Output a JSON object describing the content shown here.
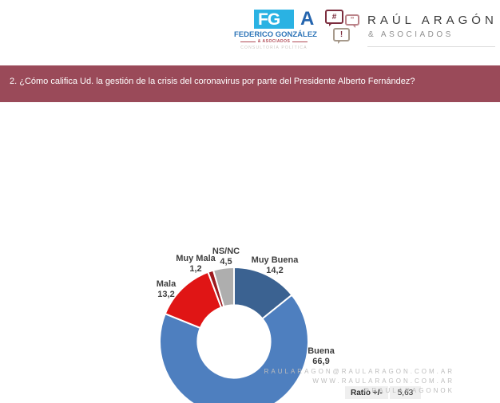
{
  "header": {
    "fga_logo": {
      "abbr_fg": "FG",
      "abbr_a": "A",
      "name": "FEDERICO GONZÁLEZ",
      "sub": "& ASOCIADOS",
      "tagline": "CONSULTORÍA POLÍTICA"
    },
    "ra_logo": {
      "bubble_hash": "#",
      "bubble_quote": "”",
      "bubble_bang": "!",
      "name": "RAÚL ARAGÓN",
      "sub": "& ASOCIADOS"
    }
  },
  "question_banner": {
    "text": "2. ¿Cómo califica Ud. la gestión de la crisis del coronavirus por parte del Presidente Alberto Fernández?"
  },
  "chart_data": {
    "type": "pie",
    "subtype": "donut",
    "title": "2. ¿Cómo califica Ud. la gestión de la crisis del coronavirus por parte del Presidente Alberto Fernández?",
    "categories": [
      "Muy Buena",
      "Buena",
      "Mala",
      "Muy Mala",
      "NS/NC"
    ],
    "values": [
      14.2,
      66.9,
      13.2,
      1.2,
      4.5
    ],
    "labels": [
      "14,2",
      "66,9",
      "13,2",
      "1,2",
      "4,5"
    ],
    "colors": [
      "#3b6291",
      "#4e7fbf",
      "#e01515",
      "#9e1b20",
      "#aeaeae"
    ],
    "start_angle_deg": 0,
    "direction": "clockwise",
    "inner_radius_ratio": 0.49,
    "legend": "none",
    "label_position": "outside"
  },
  "ratio": {
    "label": "Ratio +/-",
    "value": "5,63"
  },
  "footer": {
    "line1": "RAULARAGON@RAULARAGON.COM.AR",
    "line2": "WWW.RAULARAGON.COM.AR",
    "line3": "@RAULARAGONOK"
  }
}
